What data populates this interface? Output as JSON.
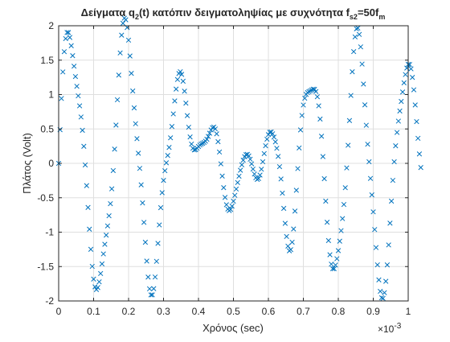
{
  "colors": {
    "marker": "#0072bd",
    "axis": "#262626",
    "grid": "#dfdfdf"
  },
  "chart_data": {
    "type": "scatter",
    "marker": "x",
    "title": {
      "main": "Δείγματα q",
      "sub1": "2",
      "mid": "(t) κατόπιν δειγματοληψίας με συχνότητα f",
      "sub2": "s2",
      "tail": "=50f",
      "sub3": "m"
    },
    "xlabel": "Χρόνος (sec)",
    "ylabel": "Πλάτος (Volt)",
    "x_exponent_label": "×10",
    "x_exponent_value": "-3",
    "xlim": [
      0,
      0.001
    ],
    "ylim": [
      -2,
      2
    ],
    "x_ticks": [
      0,
      0.0001,
      0.0002,
      0.0003,
      0.0004,
      0.0005,
      0.0006,
      0.0007,
      0.0008,
      0.0009,
      0.001
    ],
    "x_tick_labels": [
      "0",
      "0.1",
      "0.2",
      "0.3",
      "0.4",
      "0.5",
      "0.6",
      "0.7",
      "0.8",
      "0.9",
      "1"
    ],
    "y_ticks": [
      -2,
      -1.5,
      -1,
      -0.5,
      0,
      0.5,
      1,
      1.5,
      2
    ],
    "y_tick_labels": [
      "-2",
      "-1.5",
      "-1",
      "-0.5",
      "0",
      "0.5",
      "1",
      "1.5",
      "2"
    ],
    "grid": true,
    "sample_interval": 4e-06,
    "x_start": 0,
    "y": [
      0.0,
      0.489,
      0.943,
      1.329,
      1.623,
      1.813,
      1.902,
      1.901,
      1.83,
      1.71,
      1.565,
      1.412,
      1.262,
      1.12,
      0.981,
      0.836,
      0.674,
      0.48,
      0.248,
      -0.023,
      -0.324,
      -0.641,
      -0.957,
      -1.249,
      -1.497,
      -1.682,
      -1.795,
      -1.834,
      -1.805,
      -1.722,
      -1.601,
      -1.461,
      -1.316,
      -1.176,
      -1.043,
      -0.909,
      -0.762,
      -0.586,
      -0.37,
      -0.105,
      0.207,
      0.556,
      0.924,
      1.283,
      1.605,
      1.863,
      2.036,
      2.111,
      2.087,
      1.974,
      1.791,
      1.561,
      1.308,
      1.052,
      0.806,
      0.576,
      0.359,
      0.147,
      -0.073,
      -0.312,
      -0.575,
      -0.858,
      -1.147,
      -1.42,
      -1.653,
      -1.823,
      -1.912,
      -1.911,
      -1.821,
      -1.652,
      -1.424,
      -1.163,
      -0.895,
      -0.644,
      -0.426,
      -0.248,
      -0.107,
      0.008,
      0.115,
      0.232,
      0.371,
      0.536,
      0.719,
      0.907,
      1.08,
      1.219,
      1.306,
      1.332,
      1.293,
      1.194,
      1.049,
      0.875,
      0.694,
      0.525,
      0.384,
      0.281,
      0.219,
      0.195,
      0.199,
      0.219,
      0.245,
      0.266,
      0.281,
      0.292,
      0.304,
      0.322,
      0.35,
      0.391,
      0.438,
      0.485,
      0.519,
      0.528,
      0.5,
      0.429,
      0.315,
      0.165,
      -0.007,
      -0.185,
      -0.353,
      -0.495,
      -0.601,
      -0.665,
      -0.687,
      -0.67,
      -0.622,
      -0.55,
      -0.465,
      -0.373,
      -0.279,
      -0.187,
      -0.1,
      -0.021,
      0.046,
      0.097,
      0.127,
      0.131,
      0.108,
      0.06,
      -0.007,
      -0.083,
      -0.155,
      -0.209,
      -0.233,
      -0.221,
      -0.17,
      -0.085,
      0.023,
      0.142,
      0.256,
      0.351,
      0.418,
      0.453,
      0.456,
      0.43,
      0.382,
      0.312,
      0.219,
      0.101,
      -0.048,
      -0.227,
      -0.433,
      -0.654,
      -0.872,
      -1.063,
      -1.203,
      -1.271,
      -1.254,
      -1.146,
      -0.954,
      -0.694,
      -0.391,
      -0.076,
      0.224,
      0.486,
      0.696,
      0.848,
      0.946,
      1.002,
      1.029,
      1.043,
      1.054,
      1.067,
      1.078,
      1.075,
      1.044,
      0.968,
      0.836,
      0.644,
      0.394,
      0.099,
      -0.223,
      -0.549,
      -0.856,
      -1.122,
      -1.328,
      -1.465,
      -1.531,
      -1.532,
      -1.478,
      -1.386,
      -1.268,
      -1.131,
      -0.978,
      -0.803,
      -0.598,
      -0.354,
      -0.066,
      0.263,
      0.622,
      0.987,
      1.331,
      1.624,
      1.838,
      1.955,
      1.966,
      1.874,
      1.693,
      1.443,
      1.153,
      0.85,
      0.554,
      0.278,
      0.023,
      -0.219,
      -0.458,
      -0.705,
      -0.962,
      -1.224,
      -1.475,
      -1.694,
      -1.86,
      -1.953,
      -1.962,
      -1.88,
      -1.714,
      -1.476,
      -1.186,
      -0.869,
      -0.549,
      -0.247,
      0.023,
      0.255,
      0.449,
      0.614,
      0.761,
      0.9,
      1.037,
      1.17,
      1.291,
      1.385,
      1.438,
      1.437,
      1.374,
      1.249,
      1.069,
      0.849,
      0.607,
      0.364,
      0.137,
      -0.061
    ]
  }
}
